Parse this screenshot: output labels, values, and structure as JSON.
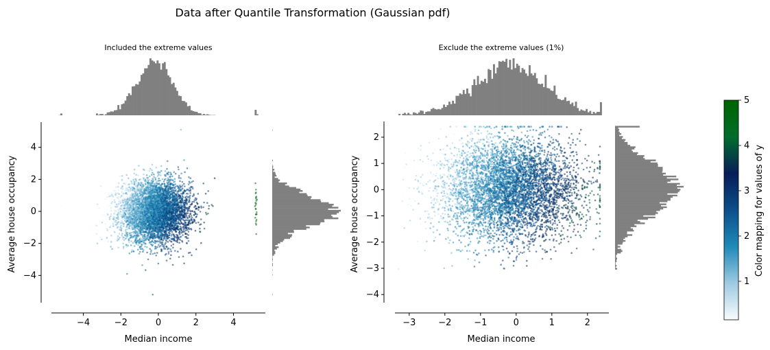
{
  "figure": {
    "suptitle": "Data after Quantile Transformation (Gaussian pdf)"
  },
  "colorbar": {
    "label": "Color mapping for values of y",
    "ticks": [
      1,
      2,
      3,
      4,
      5
    ],
    "range": [
      0.15,
      5
    ],
    "colormap": [
      "#f7fcfd",
      "#9ecae1",
      "#1f8ab8",
      "#0b4f8a",
      "#081d58",
      "#006d2c",
      "#006400"
    ]
  },
  "chart_data": [
    {
      "type": "scatter",
      "title": "Included the extreme values",
      "xlabel": "Median income",
      "ylabel": "Average house occupancy",
      "xlim": [
        -5.7,
        5.7
      ],
      "ylim": [
        -5.7,
        5.7
      ],
      "xticks": [
        -4,
        -2,
        0,
        2,
        4
      ],
      "yticks": [
        -4,
        -2,
        0,
        2,
        4
      ],
      "x_distribution": {
        "mean": -0.2,
        "std": 0.95,
        "outlier_columns": [
          -5.2,
          5.2
        ]
      },
      "y_distribution": {
        "mean": 0.0,
        "std": 0.95
      },
      "marginal_histograms": true,
      "histogram_color": "#808080"
    },
    {
      "type": "scatter",
      "title": "Exclude the extreme values (1%)",
      "xlabel": "Median income",
      "ylabel": "Average house occupancy",
      "xlim": [
        -3.4,
        2.6
      ],
      "ylim": [
        -4.1,
        2.6
      ],
      "xticks": [
        -3,
        -2,
        -1,
        0,
        1,
        2
      ],
      "yticks": [
        -4,
        -3,
        -2,
        -1,
        0,
        1,
        2
      ],
      "x_distribution": {
        "mean": -0.2,
        "std": 1.0
      },
      "y_distribution": {
        "mean": 0.0,
        "std": 1.0
      },
      "marginal_histograms": true,
      "histogram_color": "#808080"
    }
  ]
}
